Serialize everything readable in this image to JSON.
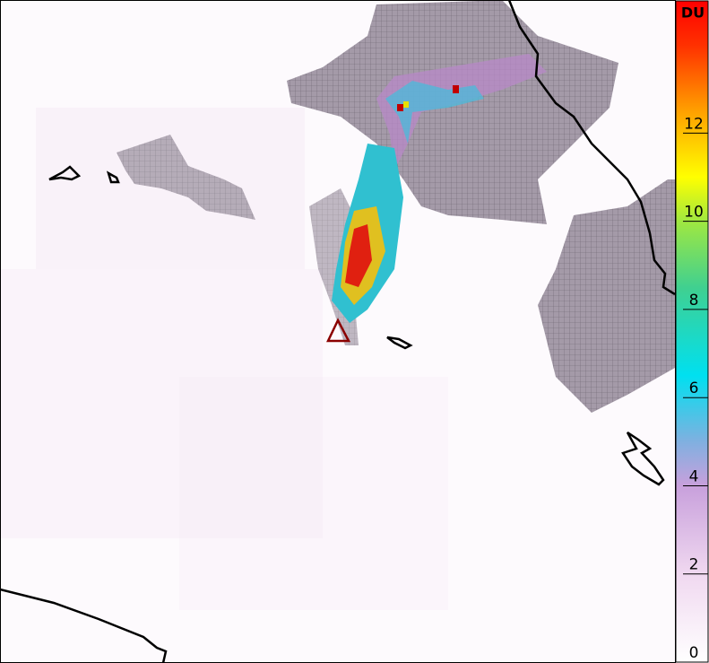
{
  "map": {
    "colorbar": {
      "unit": "DU",
      "lim": [
        0,
        15
      ],
      "ticks": [
        0,
        2,
        4,
        6,
        8,
        10,
        12
      ],
      "colorscale": [
        [
          0,
          "#ffffff"
        ],
        [
          2,
          "#f0d8f0"
        ],
        [
          4,
          "#c8a0dc"
        ],
        [
          5,
          "#80b0e0"
        ],
        [
          6.5,
          "#00e0f0"
        ],
        [
          8.5,
          "#40d090"
        ],
        [
          10,
          "#a0e840"
        ],
        [
          11,
          "#ffff00"
        ],
        [
          12.5,
          "#ffa000"
        ],
        [
          14,
          "#ff3000"
        ],
        [
          15,
          "#ff0000"
        ]
      ]
    }
  }
}
